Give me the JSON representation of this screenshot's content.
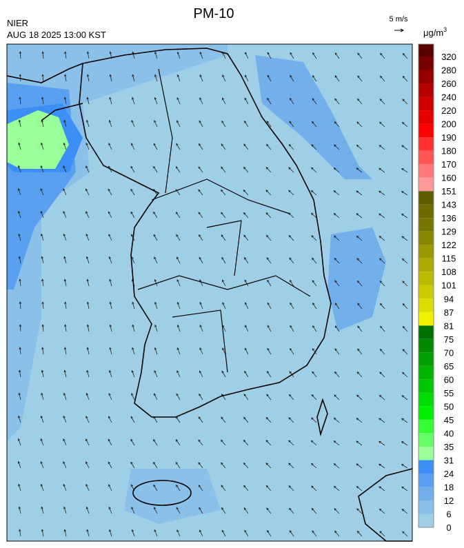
{
  "header": {
    "title": "PM-10",
    "source": "NIER",
    "timestamp": "AUG 18 2025 13:00 KST",
    "wind_scale": "5 m/s",
    "unit": "μg/m",
    "unit_exponent": "3"
  },
  "colorbar": [
    {
      "label": "0",
      "color": "#9ecfe6"
    },
    {
      "label": "6",
      "color": "#8bc0e8"
    },
    {
      "label": "12",
      "color": "#72b0ec"
    },
    {
      "label": "18",
      "color": "#5aa0f0"
    },
    {
      "label": "24",
      "color": "#3c8ff6"
    },
    {
      "label": "31",
      "color": "#99ff99"
    },
    {
      "label": "35",
      "color": "#66ff66"
    },
    {
      "label": "40",
      "color": "#33ff33"
    },
    {
      "label": "45",
      "color": "#00f000"
    },
    {
      "label": "50",
      "color": "#00dd00"
    },
    {
      "label": "55",
      "color": "#00c800"
    },
    {
      "label": "60",
      "color": "#00b400"
    },
    {
      "label": "65",
      "color": "#00a000"
    },
    {
      "label": "70",
      "color": "#008a00"
    },
    {
      "label": "75",
      "color": "#007000"
    },
    {
      "label": "81",
      "color": "#f0f000"
    },
    {
      "label": "87",
      "color": "#dcdc00"
    },
    {
      "label": "94",
      "color": "#cccc00"
    },
    {
      "label": "101",
      "color": "#bbbb00"
    },
    {
      "label": "108",
      "color": "#aaaa00"
    },
    {
      "label": "115",
      "color": "#999900"
    },
    {
      "label": "122",
      "color": "#888800"
    },
    {
      "label": "129",
      "color": "#777700"
    },
    {
      "label": "136",
      "color": "#6b6b00"
    },
    {
      "label": "143",
      "color": "#5e5e00"
    },
    {
      "label": "151",
      "color": "#ff9999"
    },
    {
      "label": "160",
      "color": "#ff7777"
    },
    {
      "label": "170",
      "color": "#ff5555"
    },
    {
      "label": "180",
      "color": "#ff3333"
    },
    {
      "label": "190",
      "color": "#ff0000"
    },
    {
      "label": "200",
      "color": "#e80000"
    },
    {
      "label": "220",
      "color": "#d00000"
    },
    {
      "label": "240",
      "color": "#b40000"
    },
    {
      "label": "260",
      "color": "#960000"
    },
    {
      "label": "280",
      "color": "#780000"
    },
    {
      "label": "320",
      "color": "#5a0000"
    }
  ]
}
